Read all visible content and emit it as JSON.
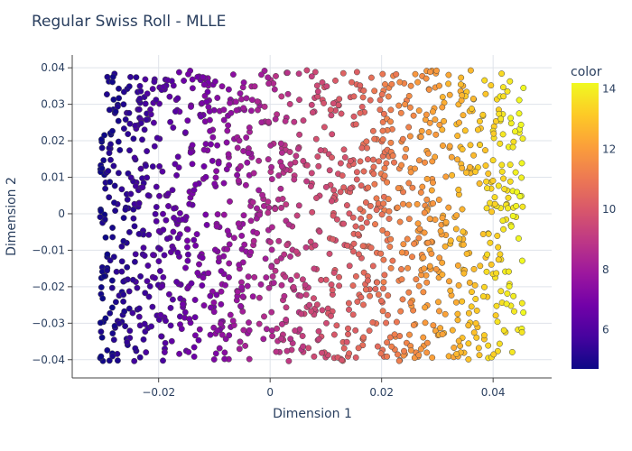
{
  "chart_data": {
    "type": "scatter",
    "title": "Regular Swiss Roll - MLLE",
    "xlabel": "Dimension 1",
    "ylabel": "Dimension 2",
    "xlim": [
      -0.0355,
      0.0505
    ],
    "ylim": [
      -0.045,
      0.0435
    ],
    "x_ticks": [
      -0.02,
      0,
      0.02,
      0.04
    ],
    "x_tick_labels": [
      "−0.02",
      "0",
      "0.02",
      "0.04"
    ],
    "y_ticks": [
      -0.04,
      -0.03,
      -0.02,
      -0.01,
      0,
      0.01,
      0.02,
      0.03,
      0.04
    ],
    "y_tick_labels": [
      "−0.04",
      "−0.03",
      "−0.02",
      "−0.01",
      "0",
      "0.01",
      "0.02",
      "0.03",
      "0.04"
    ],
    "grid": true,
    "colorbar": {
      "title": "color",
      "range": [
        4.7,
        14.2
      ],
      "ticks": [
        6,
        8,
        10,
        12,
        14
      ],
      "tick_labels": [
        "6",
        "8",
        "10",
        "12",
        "14"
      ],
      "colorscale": [
        "#0d0887",
        "#46039f",
        "#7201a8",
        "#9c179e",
        "#bd3786",
        "#d8576b",
        "#ed7953",
        "#fb9f3a",
        "#fdca26",
        "#f0f921"
      ]
    },
    "marker_outline_color": "#444444",
    "series": [
      {
        "points_description_only": false,
        "x_range": [
          -0.0305,
          0.0455
        ],
        "y_range": [
          -0.0405,
          0.0395
        ],
        "color_range": [
          4.7,
          14.1
        ],
        "n_points": 1500
      }
    ]
  }
}
